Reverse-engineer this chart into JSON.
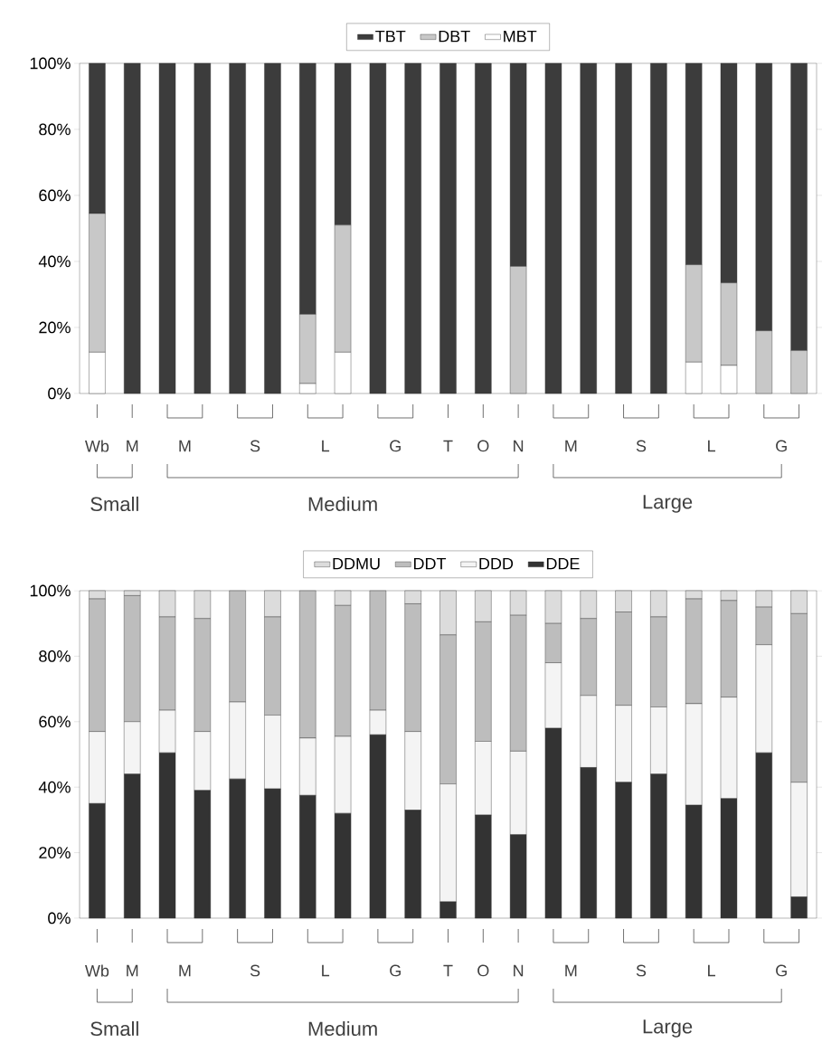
{
  "chart_data": [
    {
      "type": "bar",
      "stacked": true,
      "legend": "top",
      "categories": [
        "Wb",
        "M",
        "M",
        null,
        "S",
        null,
        "L",
        null,
        "G",
        null,
        "T",
        "O",
        "N",
        "M",
        null,
        "S",
        null,
        "L",
        null,
        "G",
        null
      ],
      "ylim": [
        0,
        100
      ],
      "yticks": [
        {
          "value": 0,
          "label": "0%"
        },
        {
          "value": 20,
          "label": "20%"
        },
        {
          "value": 40,
          "label": "40%"
        },
        {
          "value": 60,
          "label": "60%"
        },
        {
          "value": 80,
          "label": "80%"
        },
        {
          "value": 100,
          "label": "100%"
        }
      ],
      "annotations": [
        "Small",
        "Medium",
        "Large"
      ],
      "series": [
        {
          "name": "MBT",
          "color": "#ffffff",
          "values": [
            12.5,
            0,
            0,
            0,
            0,
            0,
            3,
            12.5,
            0,
            0,
            0,
            0,
            0,
            0,
            0,
            0,
            0,
            9.5,
            8.5,
            0,
            0
          ]
        },
        {
          "name": "DBT",
          "color": "#c8c8c8",
          "values": [
            42,
            0,
            0,
            0,
            0,
            0,
            21,
            38.5,
            0,
            0,
            0,
            0,
            38.5,
            0,
            0,
            0,
            0,
            29.5,
            25,
            19,
            13
          ]
        },
        {
          "name": "TBT",
          "color": "#3c3c3c",
          "values": [
            45.5,
            100,
            100,
            100,
            100,
            100,
            76,
            49,
            100,
            100,
            100,
            100,
            61.5,
            100,
            100,
            100,
            100,
            61,
            66.5,
            81,
            87
          ]
        }
      ]
    },
    {
      "type": "bar",
      "stacked": true,
      "legend": "top",
      "categories": [
        "Wb",
        "M",
        "M",
        null,
        "S",
        null,
        "L",
        null,
        "G",
        null,
        "T",
        "O",
        "N",
        "M",
        null,
        "S",
        null,
        "L",
        null,
        "G",
        null
      ],
      "ylim": [
        0,
        100
      ],
      "yticks": [
        {
          "value": 0,
          "label": "0%"
        },
        {
          "value": 20,
          "label": "20%"
        },
        {
          "value": 40,
          "label": "40%"
        },
        {
          "value": 60,
          "label": "60%"
        },
        {
          "value": 80,
          "label": "80%"
        },
        {
          "value": 100,
          "label": "100%"
        }
      ],
      "annotations": [
        "Small",
        "Medium",
        "Large"
      ],
      "series": [
        {
          "name": "DDE",
          "color": "#333333",
          "values": [
            35,
            44,
            50.5,
            39,
            42.5,
            39.5,
            37.5,
            32,
            56,
            33,
            5,
            31.5,
            25.5,
            58,
            46,
            41.5,
            44,
            34.5,
            36.5,
            50.5,
            6.5
          ]
        },
        {
          "name": "DDD",
          "color": "#f4f4f4",
          "values": [
            22,
            16,
            13,
            18,
            23.5,
            22.5,
            17.5,
            23.5,
            7.5,
            24,
            36,
            22.5,
            25.5,
            20,
            22,
            23.5,
            20.5,
            31,
            31,
            33,
            35
          ]
        },
        {
          "name": "DDT",
          "color": "#bdbdbd",
          "values": [
            40.5,
            38.5,
            28.5,
            34.5,
            34,
            30,
            45,
            40,
            36.5,
            39,
            45.5,
            36.5,
            41.5,
            12,
            23.5,
            28.5,
            27.5,
            32,
            29.5,
            11.5,
            51.5
          ]
        },
        {
          "name": "DDMU",
          "color": "#dcdcdc",
          "values": [
            2.5,
            1.5,
            8,
            8.5,
            0,
            8,
            0,
            4.5,
            0,
            4,
            13.5,
            9.5,
            7.5,
            10,
            8.5,
            6.5,
            8,
            2.5,
            3,
            5,
            7
          ]
        }
      ]
    }
  ]
}
